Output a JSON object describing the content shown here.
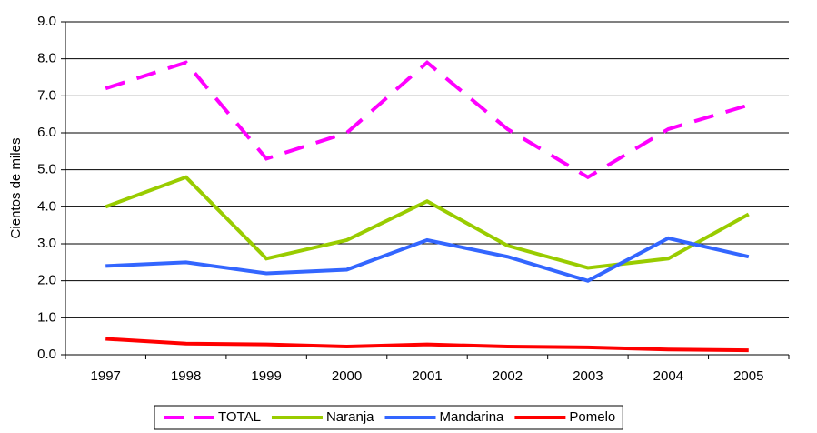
{
  "chart_data": {
    "type": "line",
    "y_label": "Cientos de miles",
    "categories": [
      "1997",
      "1998",
      "1999",
      "2000",
      "2001",
      "2002",
      "2003",
      "2004",
      "2005"
    ],
    "series": [
      {
        "name": "TOTAL",
        "color": "#ff00ff",
        "line_style": "dashed",
        "values": [
          7.2,
          7.9,
          5.3,
          6.0,
          7.9,
          6.1,
          4.8,
          6.1,
          6.75
        ]
      },
      {
        "name": "Naranja",
        "color": "#99cc00",
        "line_style": "solid",
        "values": [
          4.0,
          4.8,
          2.6,
          3.1,
          4.15,
          2.95,
          2.35,
          2.6,
          3.8
        ]
      },
      {
        "name": "Mandarina",
        "color": "#3366ff",
        "line_style": "solid",
        "values": [
          2.4,
          2.5,
          2.2,
          2.3,
          3.1,
          2.65,
          2.0,
          3.15,
          2.65
        ]
      },
      {
        "name": "Pomelo",
        "color": "#ff0000",
        "line_style": "solid",
        "values": [
          0.43,
          0.3,
          0.28,
          0.22,
          0.28,
          0.22,
          0.2,
          0.14,
          0.12
        ]
      }
    ],
    "ylim": [
      0,
      9
    ],
    "yticks": [
      {
        "value": 0,
        "label": "0.0"
      },
      {
        "value": 1,
        "label": "1.0"
      },
      {
        "value": 2,
        "label": "2.0"
      },
      {
        "value": 3,
        "label": "3.0"
      },
      {
        "value": 4,
        "label": "4.0"
      },
      {
        "value": 5,
        "label": "5.0"
      },
      {
        "value": 6,
        "label": "6.0"
      },
      {
        "value": 7,
        "label": "7.0"
      },
      {
        "value": 8,
        "label": "8.0"
      },
      {
        "value": 9,
        "label": "9.0"
      }
    ],
    "grid": true,
    "legend": "bottom"
  }
}
